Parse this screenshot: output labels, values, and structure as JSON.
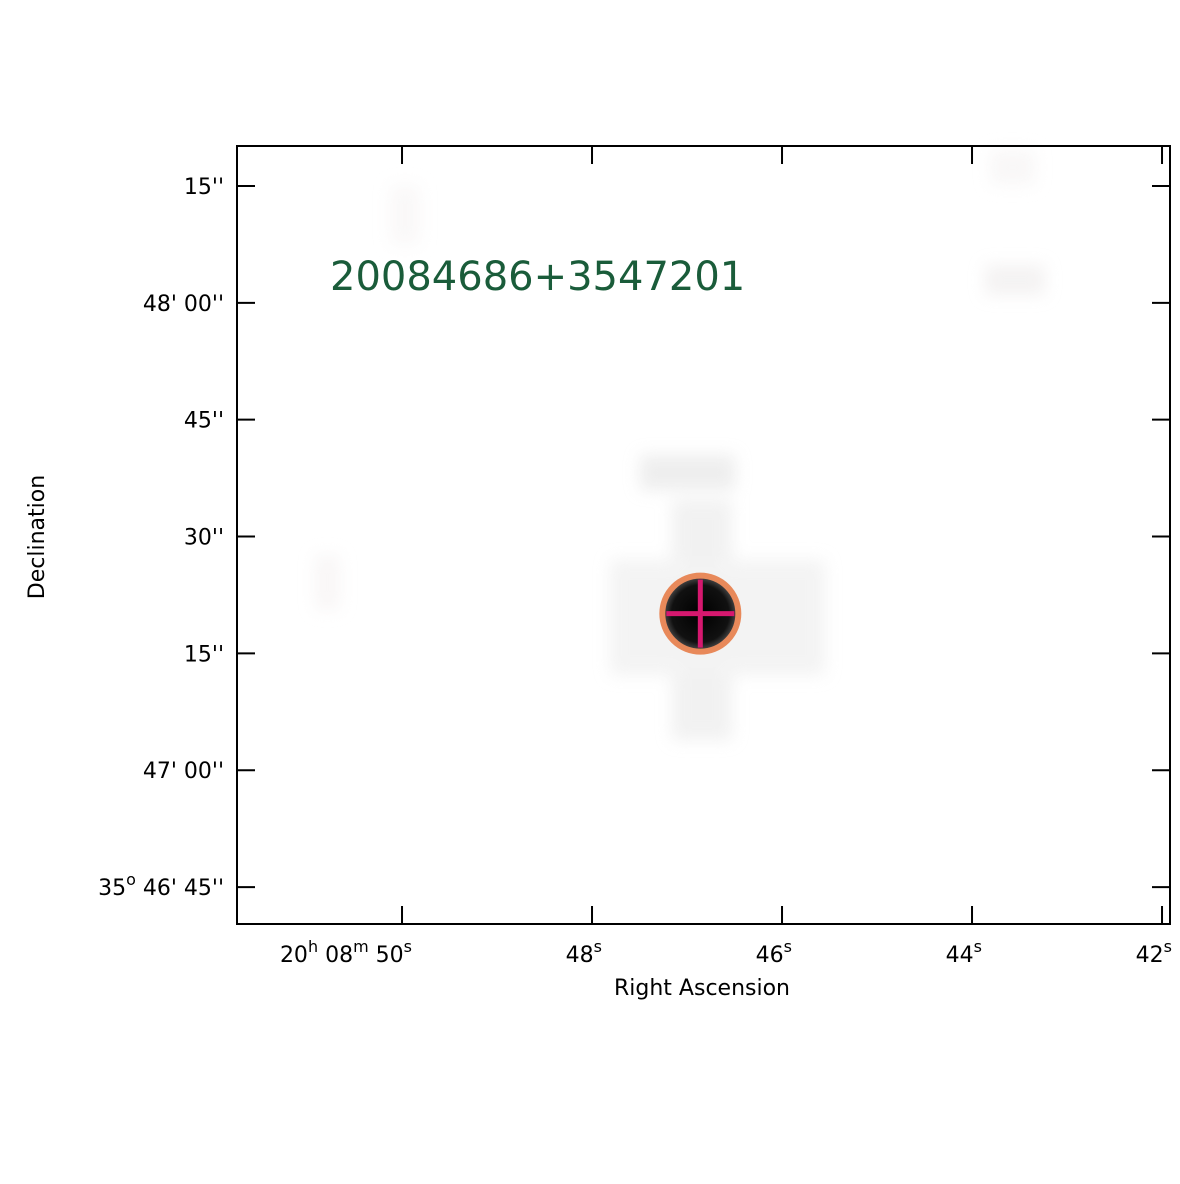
{
  "chart_data": {
    "type": "sky-image",
    "title": "20084686+3547201",
    "title_color": "#1a5c3a",
    "xlabel": "Right Ascension",
    "ylabel": "Declination",
    "xlim": [
      51.737,
      41.916
    ],
    "ylim": [
      40.26,
      140.13
    ],
    "xticks": [
      {
        "value": 50,
        "label": [
          "20",
          "h",
          " 08",
          "m",
          " 50",
          "s"
        ]
      },
      {
        "value": 48,
        "label": [
          "48",
          "s"
        ]
      },
      {
        "value": 46,
        "label": [
          "46",
          "s"
        ]
      },
      {
        "value": 44,
        "label": [
          "44",
          "s"
        ]
      },
      {
        "value": 42,
        "label": [
          "42",
          "s"
        ]
      }
    ],
    "yticks": [
      {
        "value": 45,
        "label": [
          "35",
          "o",
          " 46' 45''"
        ]
      },
      {
        "value": 60,
        "label": [
          "47' 00''"
        ]
      },
      {
        "value": 75,
        "label": [
          "15''"
        ]
      },
      {
        "value": 90,
        "label": [
          "30''"
        ]
      },
      {
        "value": 105,
        "label": [
          "45''"
        ]
      },
      {
        "value": 120,
        "label": [
          "48' 00''"
        ]
      },
      {
        "value": 135,
        "label": [
          "15''"
        ]
      }
    ],
    "source": {
      "ra": 46.86,
      "dec": 80.1,
      "circle_color": "#e8895a",
      "cross_color": "#d6186f"
    }
  }
}
